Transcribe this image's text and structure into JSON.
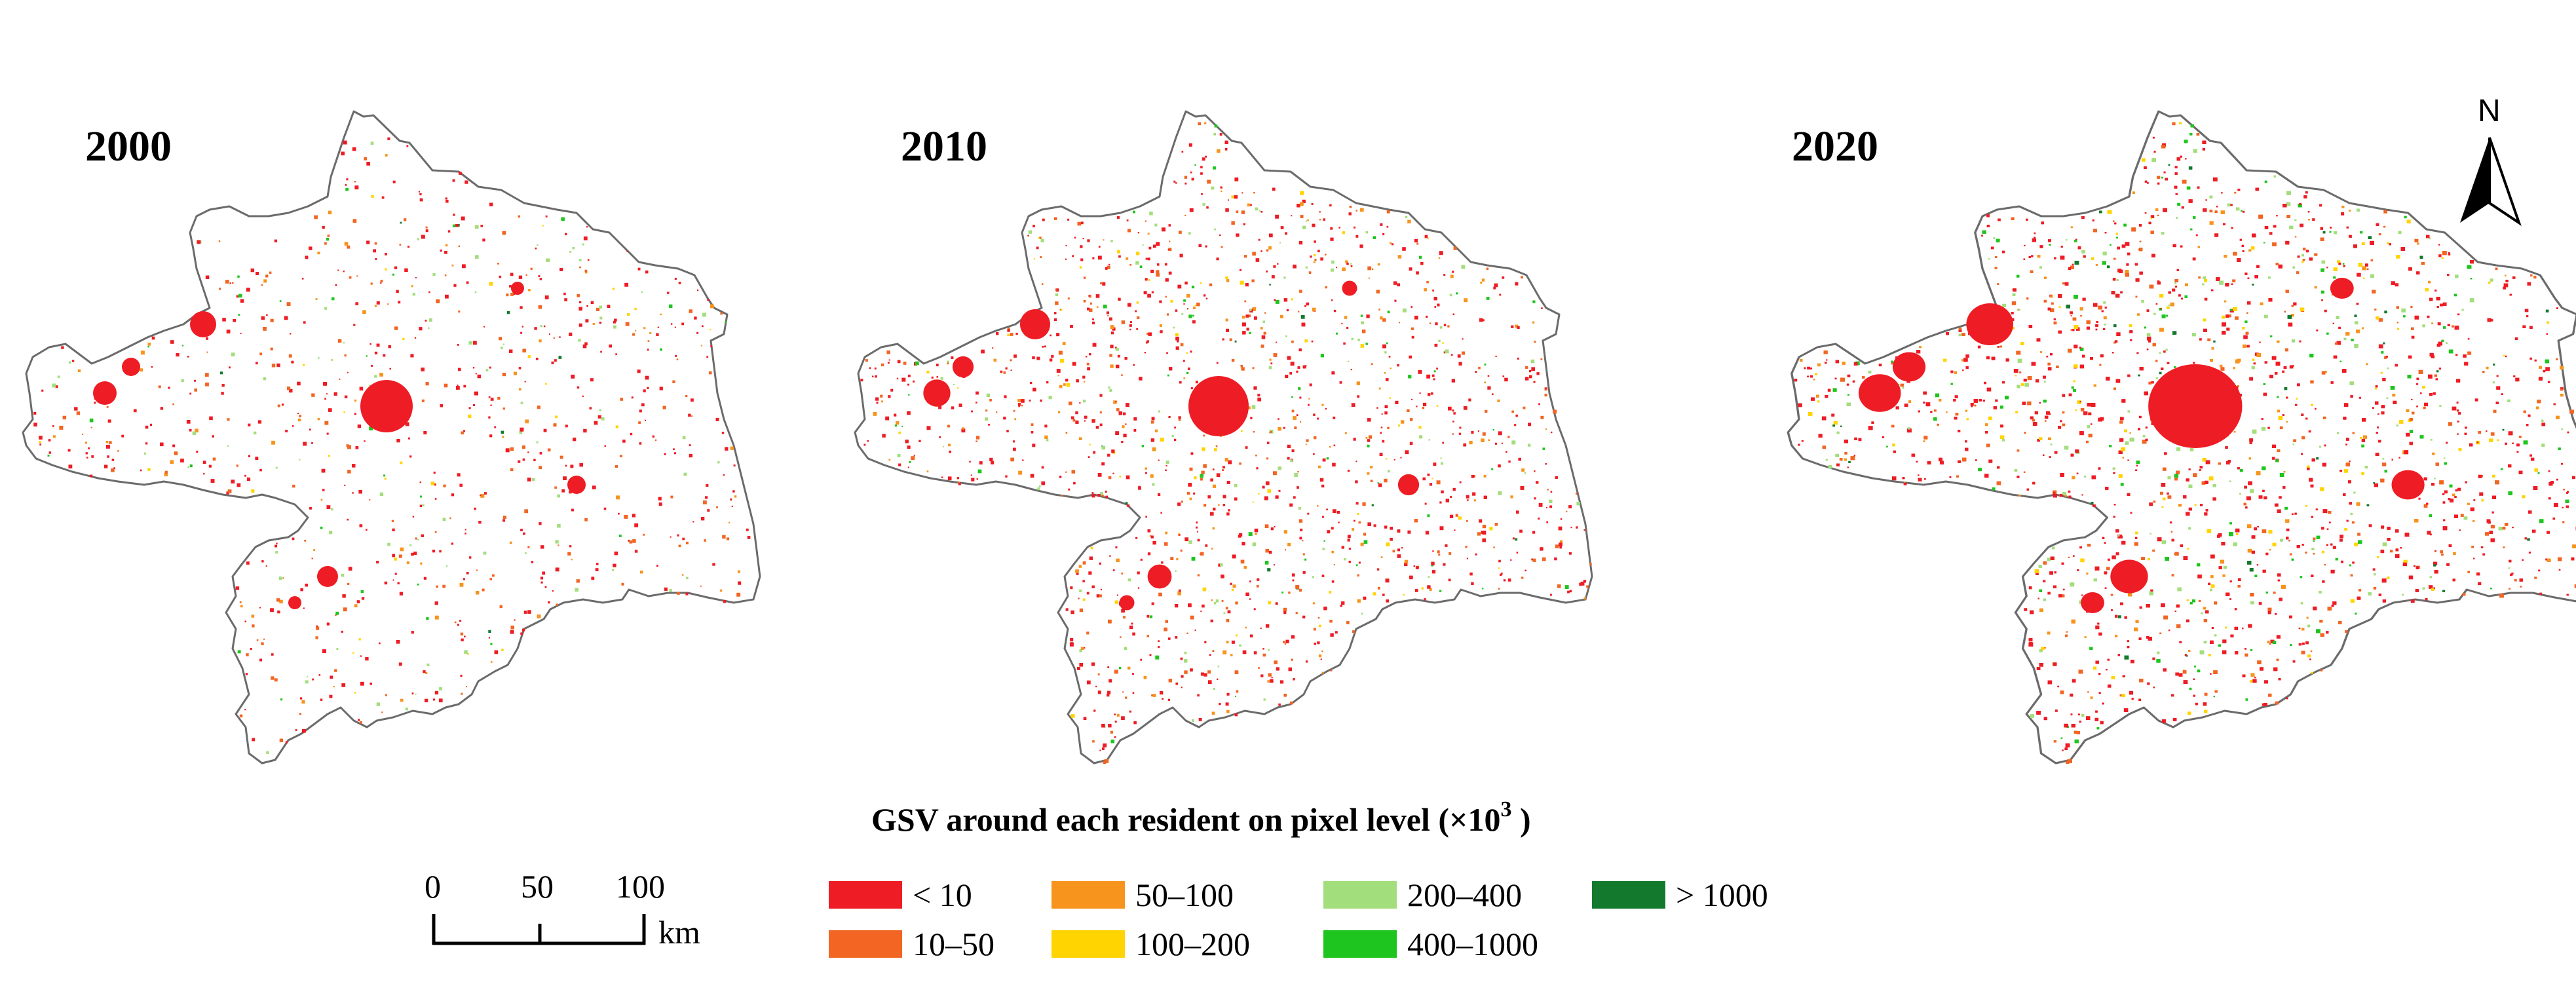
{
  "panels": [
    {
      "year": "2000",
      "density": "sparse"
    },
    {
      "year": "2010",
      "density": "medium"
    },
    {
      "year": "2020",
      "density": "dense"
    }
  ],
  "legend": {
    "title_prefix": "GSV around each resident on pixel level (×10",
    "title_exp": "3",
    "title_suffix": " )",
    "classes": [
      {
        "label": "< 10",
        "color": "#ee1c24"
      },
      {
        "label": "10–50",
        "color": "#f26522"
      },
      {
        "label": "50–100",
        "color": "#f7941d"
      },
      {
        "label": "100–200",
        "color": "#ffd400"
      },
      {
        "label": "200–400",
        "color": "#a3de7c"
      },
      {
        "label": "400–1000",
        "color": "#1ec51e"
      },
      {
        "label": "> 1000",
        "color": "#137a2d"
      }
    ]
  },
  "scale_bar": {
    "ticks": [
      "0",
      "50",
      "100"
    ],
    "unit": "km"
  },
  "north_arrow": {
    "label": "N",
    "icon": "north-arrow-icon"
  }
}
